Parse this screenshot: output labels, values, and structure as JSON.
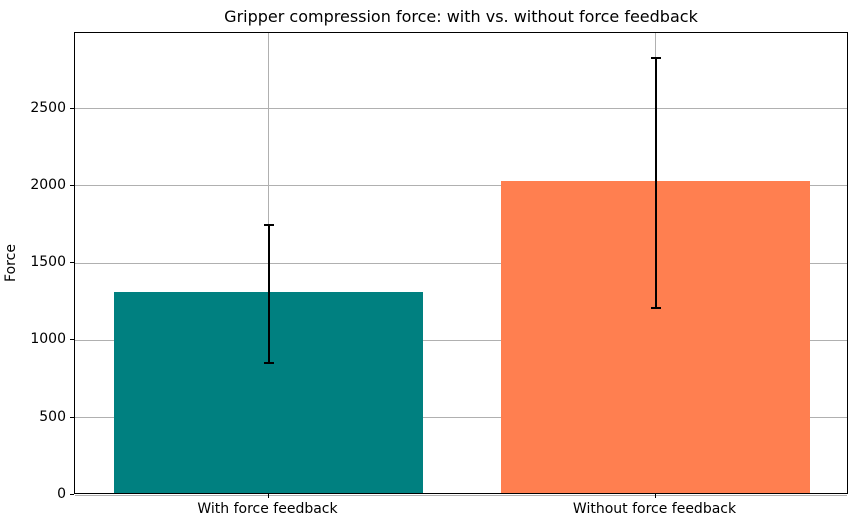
{
  "chart_data": {
    "type": "bar",
    "title": "Gripper compression force: with vs. without force feedback",
    "ylabel": "Force",
    "xlabel": "",
    "categories": [
      "With force feedback",
      "Without force feedback"
    ],
    "values": [
      1300,
      2020
    ],
    "errors": [
      445,
      810
    ],
    "bar_colors": [
      "#008080",
      "#FF7F50"
    ],
    "error_bar_color": "#000000",
    "yticks": [
      0,
      500,
      1000,
      1500,
      2000,
      2500
    ],
    "ytick_labels": [
      "0",
      "500",
      "1000",
      "1500",
      "2000",
      "2500"
    ],
    "ylim": [
      0,
      2990
    ],
    "grid": true,
    "grid_color": "#b0b0b0",
    "axis_color": "#000000",
    "background_color": "#ffffff",
    "legend": null
  }
}
